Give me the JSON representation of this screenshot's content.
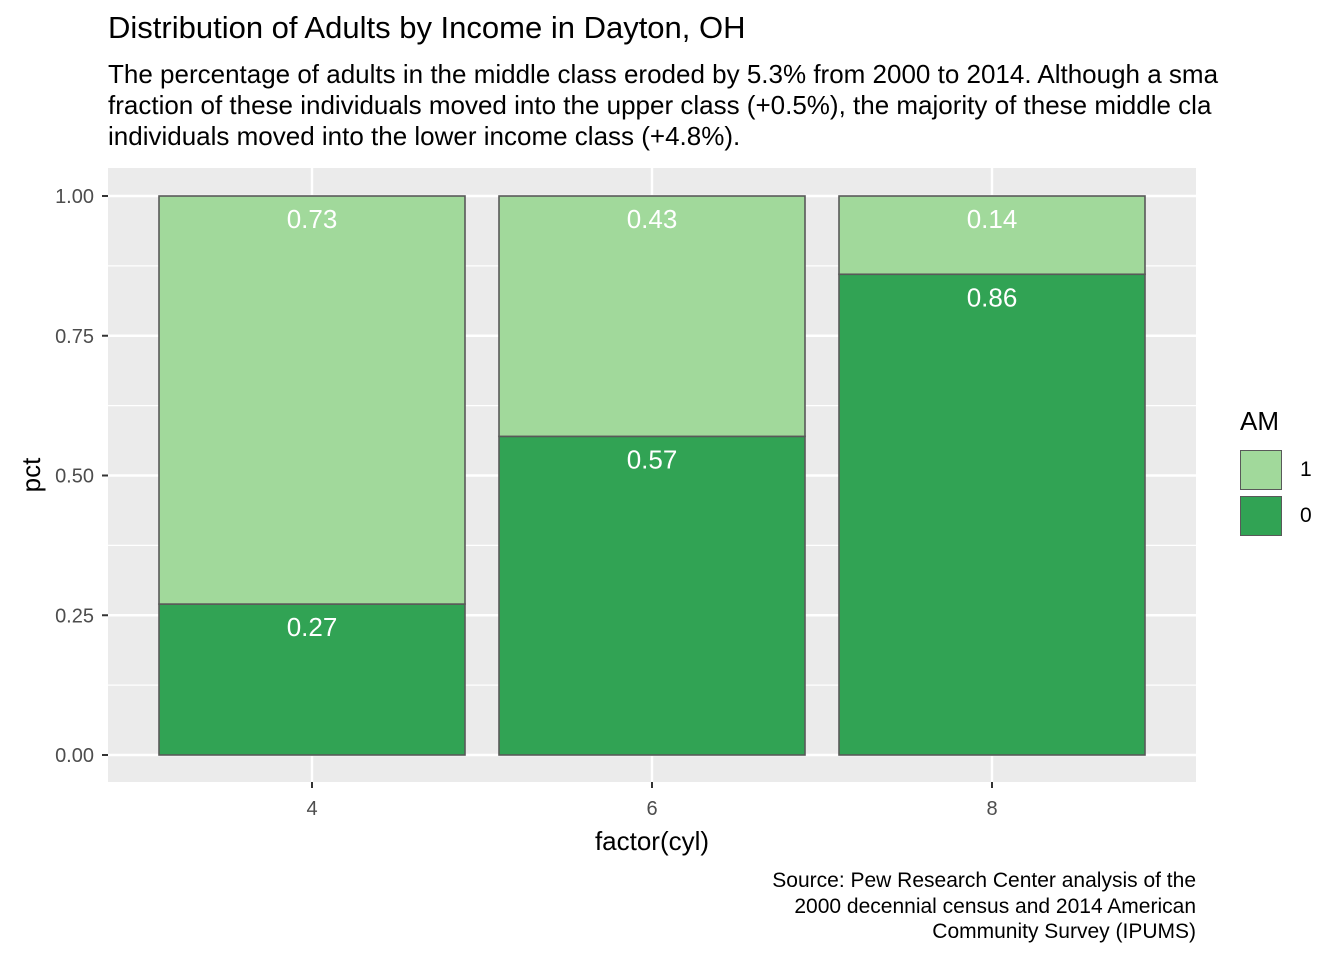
{
  "title": "Distribution of Adults by Income in Dayton, OH",
  "subtitle_lines": [
    "The percentage of adults in the middle class eroded by 5.3% from 2000 to 2014. Although a sma",
    "fraction of these individuals moved into the upper class (+0.5%), the majority of these middle cla",
    "individuals moved into the lower income class (+4.8%)."
  ],
  "caption_lines": [
    "Source: Pew Research Center analysis of the",
    "2000 decennial census and 2014 American",
    "Community Survey (IPUMS)"
  ],
  "legend": {
    "title": "AM",
    "items": [
      {
        "label": "1",
        "color": "#A1D99B"
      },
      {
        "label": "0",
        "color": "#31A354"
      }
    ]
  },
  "chart_data": {
    "type": "bar",
    "stacked": true,
    "title": "Distribution of Adults by Income in Dayton, OH",
    "xlabel": "factor(cyl)",
    "ylabel": "pct",
    "categories": [
      "4",
      "6",
      "8"
    ],
    "ylim": [
      0,
      1
    ],
    "yticks": [
      "0.00",
      "0.25",
      "0.50",
      "0.75",
      "1.00"
    ],
    "grid": true,
    "legend_position": "right",
    "series": [
      {
        "name": "0",
        "color": "#31A354",
        "values": [
          0.27,
          0.57,
          0.86
        ],
        "labels": [
          "0.27",
          "0.57",
          "0.86"
        ]
      },
      {
        "name": "1",
        "color": "#A1D99B",
        "values": [
          0.73,
          0.43,
          0.14
        ],
        "labels": [
          "0.73",
          "0.43",
          "0.14"
        ]
      }
    ]
  }
}
